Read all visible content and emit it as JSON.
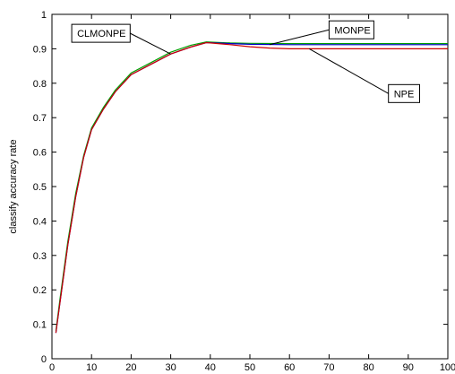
{
  "chart_data": {
    "type": "line",
    "title": "",
    "xlabel": "",
    "ylabel": "classify accuracy rate",
    "xlim": [
      0,
      100
    ],
    "ylim": [
      0,
      1
    ],
    "xticks": [
      0,
      10,
      20,
      30,
      40,
      50,
      60,
      70,
      80,
      90,
      100
    ],
    "yticks": [
      0,
      0.1,
      0.2,
      0.3,
      0.4,
      0.5,
      0.6,
      0.7,
      0.8,
      0.9,
      1
    ],
    "grid": false,
    "series": [
      {
        "name": "CLMONPE",
        "color": "#00a000",
        "x": [
          1,
          2,
          4,
          6,
          8,
          10,
          13,
          16,
          20,
          25,
          30,
          35,
          39,
          45,
          50,
          60,
          70,
          80,
          90,
          100
        ],
        "y": [
          0.08,
          0.17,
          0.34,
          0.48,
          0.59,
          0.67,
          0.73,
          0.78,
          0.83,
          0.86,
          0.89,
          0.91,
          0.92,
          0.917,
          0.916,
          0.915,
          0.915,
          0.915,
          0.915,
          0.915
        ]
      },
      {
        "name": "MONPE",
        "color": "#0000cc",
        "x": [
          1,
          2,
          4,
          6,
          8,
          10,
          13,
          16,
          20,
          25,
          30,
          35,
          39,
          45,
          50,
          60,
          70,
          80,
          90,
          100
        ],
        "y": [
          0.075,
          0.16,
          0.33,
          0.47,
          0.585,
          0.665,
          0.725,
          0.775,
          0.825,
          0.855,
          0.885,
          0.905,
          0.918,
          0.915,
          0.913,
          0.912,
          0.912,
          0.912,
          0.912,
          0.912
        ]
      },
      {
        "name": "NPE",
        "color": "#cc0000",
        "x": [
          1,
          2,
          4,
          6,
          8,
          10,
          13,
          16,
          20,
          25,
          30,
          35,
          39,
          45,
          50,
          55,
          60,
          70,
          80,
          90,
          100
        ],
        "y": [
          0.075,
          0.16,
          0.33,
          0.47,
          0.585,
          0.665,
          0.725,
          0.775,
          0.825,
          0.855,
          0.885,
          0.905,
          0.918,
          0.912,
          0.906,
          0.902,
          0.9,
          0.9,
          0.9,
          0.9,
          0.9
        ]
      }
    ],
    "annotations": [
      {
        "text": "CLMONPE",
        "target": [
          30,
          0.885
        ],
        "box": [
          5,
          0.945
        ]
      },
      {
        "text": "MONPE",
        "target": [
          55,
          0.912
        ],
        "box": [
          70,
          0.955
        ]
      },
      {
        "text": "NPE",
        "target": [
          65,
          0.9
        ],
        "box": [
          85,
          0.77
        ]
      }
    ]
  }
}
